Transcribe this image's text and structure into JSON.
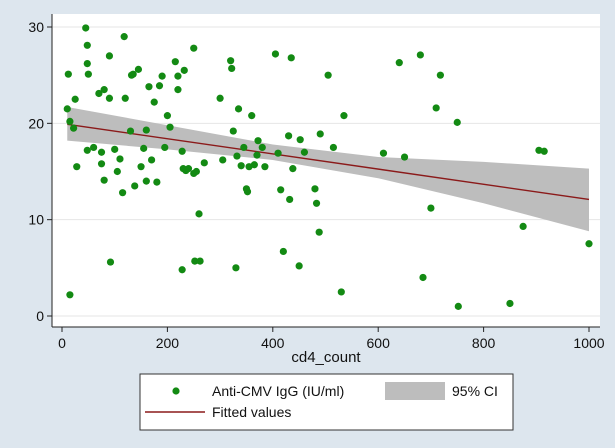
{
  "chart_data": {
    "type": "scatter",
    "xlabel": "cd4_count",
    "ylabel": "",
    "xlim": [
      0,
      1000
    ],
    "ylim": [
      0,
      30
    ],
    "xticks": [
      0,
      200,
      400,
      600,
      800,
      1000
    ],
    "yticks": [
      0,
      10,
      20,
      30
    ],
    "grid": "horizontal",
    "legend_placement": "bottom",
    "colors": {
      "page_background": "#dde6ee",
      "plot_background": "#ffffff",
      "points": "#138a13",
      "fit_line": "#8b1a1a",
      "ci_band": "#bdbdbd"
    },
    "series": [
      {
        "name": "Anti-CMV IgG (IU/ml)",
        "kind": "scatter",
        "points": [
          [
            12,
            25.1
          ],
          [
            10,
            21.5
          ],
          [
            15,
            2.2
          ],
          [
            15,
            20.2
          ],
          [
            22,
            19.5
          ],
          [
            25,
            22.5
          ],
          [
            28,
            15.5
          ],
          [
            45,
            29.9
          ],
          [
            48,
            28.1
          ],
          [
            48,
            26.2
          ],
          [
            50,
            25.1
          ],
          [
            48,
            17.2
          ],
          [
            60,
            17.5
          ],
          [
            70,
            23.1
          ],
          [
            75,
            17.0
          ],
          [
            75,
            15.8
          ],
          [
            80,
            23.5
          ],
          [
            80,
            14.1
          ],
          [
            90,
            27.0
          ],
          [
            90,
            22.6
          ],
          [
            92,
            5.6
          ],
          [
            100,
            17.3
          ],
          [
            105,
            15.0
          ],
          [
            110,
            16.3
          ],
          [
            115,
            12.8
          ],
          [
            118,
            29.0
          ],
          [
            120,
            22.6
          ],
          [
            130,
            19.2
          ],
          [
            132,
            25.0
          ],
          [
            135,
            25.1
          ],
          [
            138,
            13.5
          ],
          [
            145,
            25.6
          ],
          [
            150,
            15.5
          ],
          [
            155,
            17.4
          ],
          [
            160,
            14.0
          ],
          [
            160,
            19.3
          ],
          [
            165,
            23.8
          ],
          [
            170,
            16.2
          ],
          [
            175,
            22.2
          ],
          [
            180,
            13.9
          ],
          [
            185,
            23.9
          ],
          [
            190,
            24.9
          ],
          [
            195,
            17.5
          ],
          [
            200,
            20.8
          ],
          [
            205,
            19.6
          ],
          [
            215,
            26.4
          ],
          [
            220,
            24.9
          ],
          [
            220,
            23.5
          ],
          [
            228,
            17.1
          ],
          [
            228,
            4.8
          ],
          [
            230,
            15.3
          ],
          [
            232,
            25.5
          ],
          [
            235,
            15.1
          ],
          [
            240,
            15.3
          ],
          [
            250,
            27.8
          ],
          [
            250,
            14.8
          ],
          [
            252,
            5.7
          ],
          [
            255,
            15.0
          ],
          [
            260,
            10.6
          ],
          [
            262,
            5.7
          ],
          [
            270,
            15.9
          ],
          [
            300,
            22.6
          ],
          [
            305,
            16.2
          ],
          [
            320,
            26.5
          ],
          [
            322,
            25.7
          ],
          [
            325,
            19.2
          ],
          [
            330,
            5.0
          ],
          [
            332,
            16.6
          ],
          [
            335,
            21.5
          ],
          [
            340,
            15.6
          ],
          [
            345,
            17.5
          ],
          [
            350,
            13.2
          ],
          [
            352,
            12.9
          ],
          [
            355,
            15.5
          ],
          [
            360,
            20.8
          ],
          [
            365,
            15.7
          ],
          [
            370,
            16.7
          ],
          [
            372,
            18.2
          ],
          [
            380,
            17.5
          ],
          [
            385,
            15.5
          ],
          [
            405,
            27.2
          ],
          [
            410,
            16.9
          ],
          [
            415,
            13.1
          ],
          [
            420,
            6.7
          ],
          [
            430,
            18.7
          ],
          [
            432,
            12.1
          ],
          [
            435,
            26.8
          ],
          [
            438,
            15.3
          ],
          [
            450,
            5.2
          ],
          [
            452,
            18.3
          ],
          [
            460,
            17.0
          ],
          [
            480,
            13.2
          ],
          [
            483,
            11.7
          ],
          [
            488,
            8.7
          ],
          [
            490,
            18.9
          ],
          [
            505,
            25.0
          ],
          [
            515,
            17.5
          ],
          [
            530,
            2.5
          ],
          [
            535,
            20.8
          ],
          [
            610,
            16.9
          ],
          [
            640,
            26.3
          ],
          [
            650,
            16.5
          ],
          [
            680,
            27.1
          ],
          [
            685,
            4.0
          ],
          [
            700,
            11.2
          ],
          [
            710,
            21.6
          ],
          [
            718,
            25.0
          ],
          [
            750,
            20.1
          ],
          [
            752,
            1.0
          ],
          [
            850,
            1.3
          ],
          [
            875,
            9.3
          ],
          [
            905,
            17.2
          ],
          [
            915,
            17.1
          ],
          [
            1000,
            7.5
          ]
        ]
      },
      {
        "name": "Fitted values",
        "kind": "line",
        "x": [
          10,
          1000
        ],
        "y": [
          19.9,
          12.1
        ]
      },
      {
        "name": "95% CI",
        "kind": "band",
        "x": [
          10,
          200,
          400,
          600,
          800,
          1000
        ],
        "lower": [
          18.2,
          17.3,
          16.2,
          14.3,
          11.7,
          8.8
        ],
        "upper": [
          21.7,
          19.8,
          17.8,
          16.5,
          16.0,
          15.3
        ]
      }
    ]
  }
}
